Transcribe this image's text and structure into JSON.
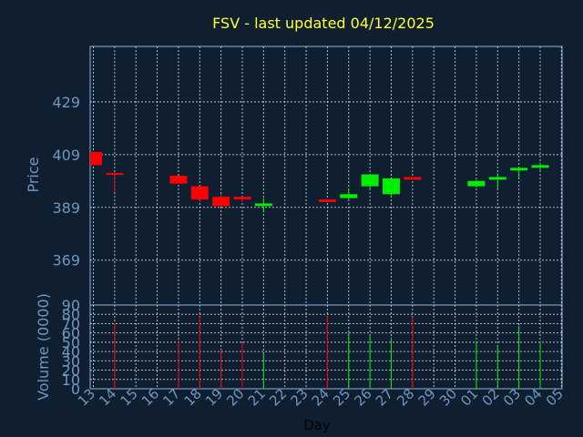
{
  "chart_data": {
    "type": "candlestick",
    "title": "FSV - last updated 04/12/2025",
    "xlabel": "Day",
    "price_panel": {
      "ylabel": "Price",
      "ylim": [
        352,
        450
      ],
      "yticks": [
        369,
        389,
        409,
        429
      ],
      "grid": true
    },
    "volume_panel": {
      "ylabel": "Volume (0000)",
      "ylim": [
        0,
        90
      ],
      "yticks": [
        0,
        10,
        20,
        30,
        40,
        50,
        60,
        70,
        80,
        90
      ],
      "grid": true
    },
    "colors": {
      "up": "#00ee00",
      "down": "#ff0000"
    },
    "days": [
      "13",
      "14",
      "15",
      "16",
      "17",
      "18",
      "19",
      "20",
      "21",
      "22",
      "23",
      "24",
      "25",
      "26",
      "27",
      "28",
      "29",
      "30",
      "01",
      "02",
      "03",
      "04",
      "05"
    ],
    "series": [
      {
        "day": "13",
        "open": 410,
        "close": 405,
        "high": 410,
        "low": 405,
        "volume": 0
      },
      {
        "day": "14",
        "open": 402,
        "close": 401.5,
        "high": 402,
        "low": 395,
        "volume": 71
      },
      {
        "day": "17",
        "open": 401,
        "close": 398,
        "high": 401,
        "low": 398,
        "volume": 52
      },
      {
        "day": "18",
        "open": 397,
        "close": 392,
        "high": 397,
        "low": 391.5,
        "volume": 80
      },
      {
        "day": "19",
        "open": 393,
        "close": 389.5,
        "high": 394,
        "low": 389.5,
        "volume": 42
      },
      {
        "day": "20",
        "open": 393,
        "close": 392,
        "high": 393,
        "low": 391,
        "volume": 49
      },
      {
        "day": "21",
        "open": 389.5,
        "close": 390.5,
        "high": 392.5,
        "low": 387,
        "volume": 38
      },
      {
        "day": "24",
        "open": 392,
        "close": 391,
        "high": 392,
        "low": 391,
        "volume": 79
      },
      {
        "day": "25",
        "open": 392.5,
        "close": 394,
        "high": 396,
        "low": 392,
        "volume": 60
      },
      {
        "day": "26",
        "open": 397,
        "close": 401.5,
        "high": 401.5,
        "low": 395.5,
        "volume": 58
      },
      {
        "day": "27",
        "open": 394,
        "close": 400,
        "high": 400,
        "low": 393,
        "volume": 55
      },
      {
        "day": "28",
        "open": 400.5,
        "close": 399.5,
        "high": 400.5,
        "low": 399.5,
        "volume": 77
      },
      {
        "day": "01",
        "open": 397,
        "close": 399,
        "high": 399.5,
        "low": 396.5,
        "volume": 51
      },
      {
        "day": "02",
        "open": 399.5,
        "close": 400.5,
        "high": 402,
        "low": 396,
        "volume": 46
      },
      {
        "day": "03",
        "open": 403,
        "close": 404,
        "high": 404,
        "low": 400,
        "volume": 68
      },
      {
        "day": "04",
        "open": 404,
        "close": 405,
        "high": 406,
        "low": 403,
        "volume": 51
      }
    ]
  }
}
